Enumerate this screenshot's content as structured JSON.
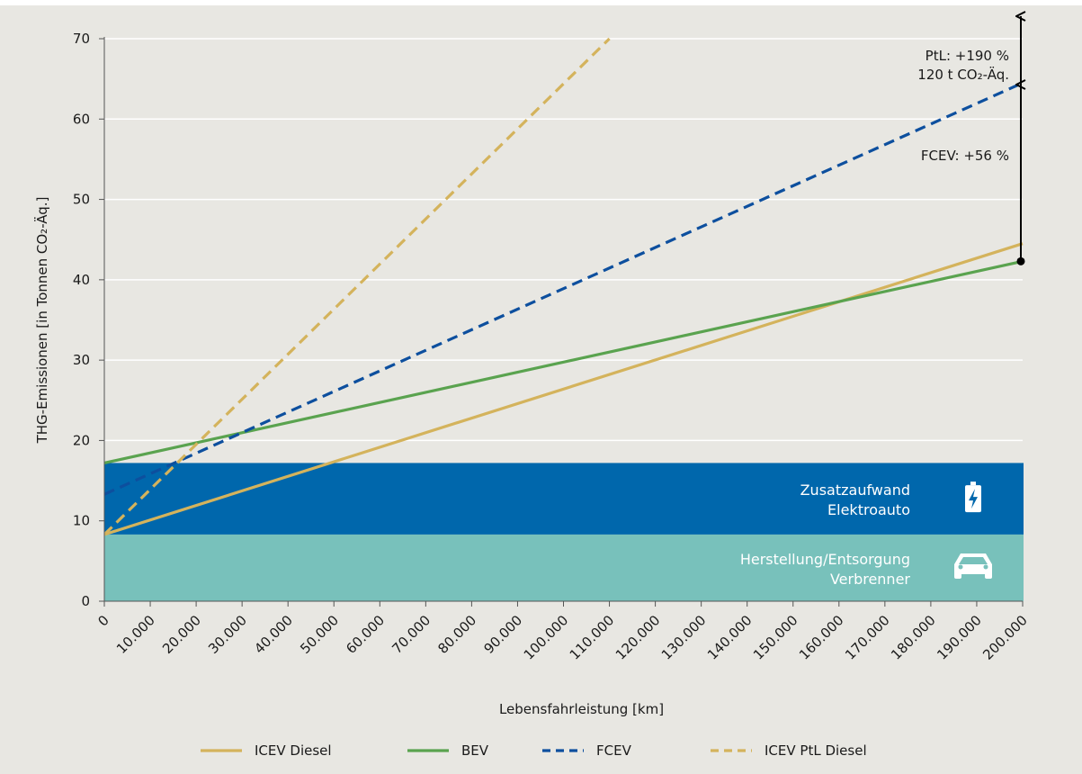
{
  "chart_data": {
    "type": "line",
    "x": [
      0,
      200000
    ],
    "xlim": [
      0,
      200000
    ],
    "ylim": [
      0,
      70
    ],
    "xticks": [
      "0",
      "10.000",
      "20.000",
      "30.000",
      "40.000",
      "50.000",
      "60.000",
      "70.000",
      "80.000",
      "90.000",
      "100.000",
      "110.000",
      "120.000",
      "130.000",
      "140.000",
      "150.000",
      "160.000",
      "170.000",
      "180.000",
      "190.000",
      "200.000"
    ],
    "yticks": [
      "0",
      "10",
      "20",
      "30",
      "40",
      "50",
      "60",
      "70"
    ],
    "xlabel": "Lebensfahrleistung [km]",
    "ylabel": "THG-Emissionen [in Tonnen CO₂-Äq.]",
    "grid": "horizontal",
    "series": [
      {
        "name": "ICEV Diesel",
        "x": [
          0,
          200000
        ],
        "y": [
          8.3,
          44.5
        ],
        "color": "#d4b35c",
        "style": "solid"
      },
      {
        "name": "BEV",
        "x": [
          0,
          200000
        ],
        "y": [
          17.2,
          42.3
        ],
        "color": "#5aa34f",
        "style": "solid"
      },
      {
        "name": "FCEV",
        "x": [
          0,
          200000
        ],
        "y": [
          13.3,
          64.5
        ],
        "color": "#0d4f9e",
        "style": "dashed"
      },
      {
        "name": "ICEV PtL Diesel",
        "x": [
          0,
          110000
        ],
        "y": [
          8.3,
          70
        ],
        "color": "#d4b35c",
        "style": "dashed"
      }
    ],
    "bands": [
      {
        "label_lines": [
          "Herstellung/Entsorgung",
          "Verbrenner"
        ],
        "y0": 0,
        "y1": 8.3,
        "color": "#78c1bb",
        "icon": "car-icon"
      },
      {
        "label_lines": [
          "Zusatzaufwand",
          "Elektroauto"
        ],
        "y0": 8.3,
        "y1": 17.2,
        "color": "#0067ac",
        "icon": "battery-charging-icon"
      }
    ],
    "annotations": [
      {
        "text_lines": [
          "PtL: +190 %",
          "120 t CO₂-Äq."
        ]
      },
      {
        "text_lines": [
          "FCEV: +56 %"
        ]
      }
    ],
    "legend_position": "bottom"
  }
}
